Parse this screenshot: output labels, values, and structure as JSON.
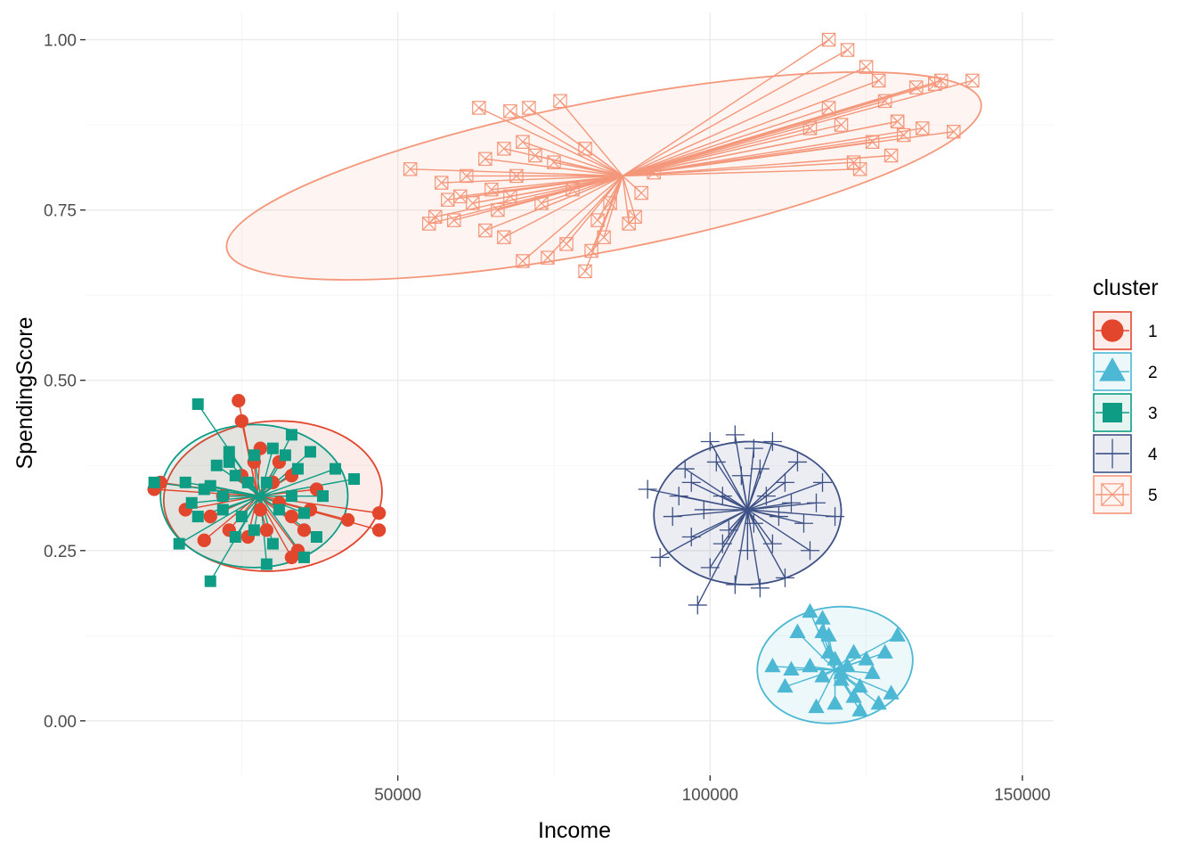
{
  "chart_data": {
    "type": "scatter",
    "title": "",
    "xlabel": "Income",
    "ylabel": "SpendingScore",
    "xlim": [
      0,
      155000
    ],
    "ylim": [
      -0.08,
      1.04
    ],
    "x_ticks": [
      50000,
      100000,
      150000
    ],
    "x_tick_labels": [
      "50000",
      "100000",
      "150000"
    ],
    "y_ticks": [
      0,
      0.25,
      0.5,
      0.75,
      1.0
    ],
    "y_tick_labels": [
      "0.00",
      "0.25",
      "0.50",
      "0.75",
      "1.00"
    ],
    "grid": true,
    "legend": {
      "title": "cluster",
      "position": "right"
    },
    "series": [
      {
        "name": "1",
        "color": "#e2472e",
        "shape": "circle",
        "center": [
          27500,
          0.33
        ],
        "ellipse": {
          "cx": 30000,
          "cy": 0.33,
          "rx": 17500,
          "ry": 0.11,
          "angle": -4
        },
        "points": [
          [
            24500,
            0.47
          ],
          [
            25000,
            0.44
          ],
          [
            28000,
            0.4
          ],
          [
            31000,
            0.38
          ],
          [
            33000,
            0.36
          ],
          [
            37000,
            0.34
          ],
          [
            12000,
            0.35
          ],
          [
            47000,
            0.305
          ],
          [
            47000,
            0.28
          ],
          [
            42000,
            0.295
          ],
          [
            34000,
            0.25
          ],
          [
            33000,
            0.24
          ],
          [
            20000,
            0.3
          ],
          [
            19000,
            0.265
          ],
          [
            23000,
            0.28
          ],
          [
            26000,
            0.27
          ],
          [
            29000,
            0.28
          ],
          [
            33000,
            0.3
          ],
          [
            36000,
            0.31
          ],
          [
            28000,
            0.31
          ],
          [
            22000,
            0.33
          ],
          [
            25000,
            0.36
          ],
          [
            30000,
            0.35
          ],
          [
            27000,
            0.38
          ],
          [
            16000,
            0.31
          ],
          [
            11000,
            0.34
          ],
          [
            35000,
            0.28
          ],
          [
            31000,
            0.32
          ]
        ]
      },
      {
        "name": "2",
        "color": "#4cb8d4",
        "shape": "triangle",
        "center": [
          120000,
          0.075
        ],
        "ellipse": {
          "cx": 120000,
          "cy": 0.082,
          "rx": 12500,
          "ry": 0.085,
          "angle": -8
        },
        "points": [
          [
            116000,
            0.16
          ],
          [
            118000,
            0.13
          ],
          [
            119000,
            0.1
          ],
          [
            121000,
            0.06
          ],
          [
            123000,
            0.035
          ],
          [
            126000,
            0.07
          ],
          [
            128000,
            0.1
          ],
          [
            130000,
            0.125
          ],
          [
            129000,
            0.04
          ],
          [
            127000,
            0.025
          ],
          [
            124000,
            0.015
          ],
          [
            120000,
            0.025
          ],
          [
            117000,
            0.02
          ],
          [
            112000,
            0.05
          ],
          [
            110000,
            0.08
          ],
          [
            114000,
            0.13
          ],
          [
            119000,
            0.125
          ],
          [
            120000,
            0.09
          ],
          [
            121000,
            0.07
          ],
          [
            122000,
            0.08
          ],
          [
            123000,
            0.1
          ],
          [
            118000,
            0.065
          ],
          [
            116000,
            0.08
          ],
          [
            124000,
            0.05
          ],
          [
            125000,
            0.09
          ],
          [
            118000,
            0.15
          ],
          [
            113000,
            0.075
          ]
        ]
      },
      {
        "name": "3",
        "color": "#0e9c84",
        "shape": "square",
        "center": [
          28000,
          0.33
        ],
        "ellipse": {
          "cx": 27000,
          "cy": 0.33,
          "rx": 15000,
          "ry": 0.105,
          "angle": 0
        },
        "points": [
          [
            18000,
            0.465
          ],
          [
            11000,
            0.35
          ],
          [
            15000,
            0.26
          ],
          [
            20000,
            0.205
          ],
          [
            24000,
            0.27
          ],
          [
            29000,
            0.23
          ],
          [
            35000,
            0.24
          ],
          [
            37000,
            0.27
          ],
          [
            43000,
            0.355
          ],
          [
            40000,
            0.37
          ],
          [
            36000,
            0.395
          ],
          [
            33000,
            0.42
          ],
          [
            30000,
            0.4
          ],
          [
            23000,
            0.38
          ],
          [
            21000,
            0.375
          ],
          [
            19000,
            0.34
          ],
          [
            17000,
            0.32
          ],
          [
            18000,
            0.3
          ],
          [
            22000,
            0.31
          ],
          [
            25000,
            0.3
          ],
          [
            27000,
            0.28
          ],
          [
            31000,
            0.31
          ],
          [
            33000,
            0.33
          ],
          [
            29000,
            0.35
          ],
          [
            26000,
            0.35
          ],
          [
            24000,
            0.36
          ],
          [
            34000,
            0.37
          ],
          [
            38000,
            0.33
          ],
          [
            20000,
            0.345
          ],
          [
            16000,
            0.35
          ],
          [
            32000,
            0.39
          ],
          [
            27000,
            0.39
          ],
          [
            23000,
            0.395
          ],
          [
            35000,
            0.305
          ],
          [
            30000,
            0.26
          ],
          [
            22000,
            0.33
          ]
        ]
      },
      {
        "name": "4",
        "color": "#3e5185",
        "shape": "plus",
        "center": [
          106000,
          0.31
        ],
        "ellipse": {
          "cx": 106000,
          "cy": 0.305,
          "rx": 15000,
          "ry": 0.105,
          "angle": -2
        },
        "points": [
          [
            98000,
            0.17
          ],
          [
            92000,
            0.24
          ],
          [
            90000,
            0.34
          ],
          [
            96000,
            0.37
          ],
          [
            100000,
            0.41
          ],
          [
            104000,
            0.42
          ],
          [
            110000,
            0.41
          ],
          [
            114000,
            0.38
          ],
          [
            118000,
            0.35
          ],
          [
            120000,
            0.3
          ],
          [
            116000,
            0.25
          ],
          [
            112000,
            0.21
          ],
          [
            108000,
            0.195
          ],
          [
            104000,
            0.2
          ],
          [
            100000,
            0.225
          ],
          [
            97000,
            0.27
          ],
          [
            94000,
            0.3
          ],
          [
            102000,
            0.33
          ],
          [
            105000,
            0.36
          ],
          [
            107000,
            0.29
          ],
          [
            109000,
            0.33
          ],
          [
            111000,
            0.3
          ],
          [
            103000,
            0.28
          ],
          [
            99000,
            0.31
          ],
          [
            113000,
            0.32
          ],
          [
            106000,
            0.25
          ],
          [
            101000,
            0.38
          ],
          [
            108000,
            0.37
          ],
          [
            115000,
            0.29
          ],
          [
            95000,
            0.33
          ],
          [
            110000,
            0.26
          ],
          [
            102000,
            0.26
          ],
          [
            117000,
            0.32
          ],
          [
            97000,
            0.35
          ],
          [
            107000,
            0.4
          ],
          [
            112000,
            0.35
          ]
        ]
      },
      {
        "name": "5",
        "color": "#f4977a",
        "shape": "square-cross",
        "center": [
          86000,
          0.8
        ],
        "ellipse": {
          "cx": 83000,
          "cy": 0.8,
          "rx": 61500,
          "ry": 0.11,
          "angle": -11
        },
        "points": [
          [
            119000,
            1.0
          ],
          [
            122000,
            0.985
          ],
          [
            125000,
            0.96
          ],
          [
            136000,
            0.935
          ],
          [
            137000,
            0.94
          ],
          [
            142000,
            0.94
          ],
          [
            130000,
            0.88
          ],
          [
            134000,
            0.87
          ],
          [
            139000,
            0.865
          ],
          [
            131000,
            0.86
          ],
          [
            126000,
            0.85
          ],
          [
            123000,
            0.82
          ],
          [
            129000,
            0.83
          ],
          [
            124000,
            0.81
          ],
          [
            130000,
            0.88
          ],
          [
            119000,
            0.9
          ],
          [
            121000,
            0.875
          ],
          [
            116000,
            0.87
          ],
          [
            128000,
            0.91
          ],
          [
            133000,
            0.93
          ],
          [
            127000,
            0.94
          ],
          [
            91000,
            0.805
          ],
          [
            89000,
            0.775
          ],
          [
            88000,
            0.74
          ],
          [
            87000,
            0.73
          ],
          [
            82000,
            0.735
          ],
          [
            81000,
            0.69
          ],
          [
            80000,
            0.66
          ],
          [
            77000,
            0.7
          ],
          [
            74000,
            0.68
          ],
          [
            70000,
            0.675
          ],
          [
            67000,
            0.71
          ],
          [
            64000,
            0.72
          ],
          [
            59000,
            0.735
          ],
          [
            56000,
            0.74
          ],
          [
            55000,
            0.73
          ],
          [
            58000,
            0.765
          ],
          [
            60000,
            0.77
          ],
          [
            57000,
            0.79
          ],
          [
            52000,
            0.81
          ],
          [
            64000,
            0.825
          ],
          [
            67000,
            0.84
          ],
          [
            71000,
            0.9
          ],
          [
            68000,
            0.895
          ],
          [
            63000,
            0.9
          ],
          [
            76000,
            0.91
          ],
          [
            80000,
            0.84
          ],
          [
            72000,
            0.83
          ],
          [
            69000,
            0.8
          ],
          [
            65000,
            0.78
          ],
          [
            66000,
            0.75
          ],
          [
            62000,
            0.76
          ],
          [
            73000,
            0.76
          ],
          [
            78000,
            0.78
          ],
          [
            75000,
            0.82
          ],
          [
            70000,
            0.85
          ],
          [
            68000,
            0.77
          ],
          [
            61000,
            0.8
          ],
          [
            84000,
            0.76
          ],
          [
            83000,
            0.71
          ]
        ]
      }
    ]
  }
}
